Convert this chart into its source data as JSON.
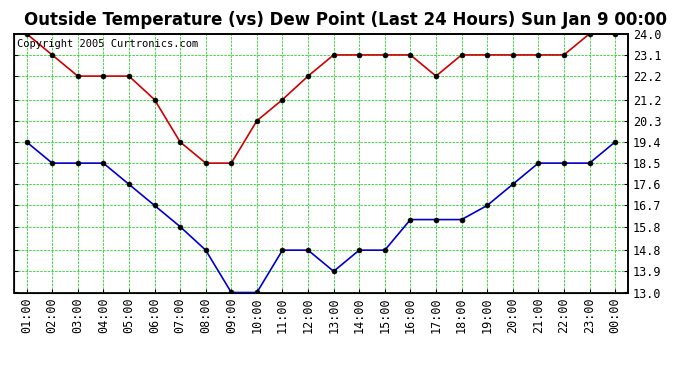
{
  "title": "Outside Temperature (vs) Dew Point (Last 24 Hours) Sun Jan 9 00:00",
  "copyright": "Copyright 2005 Curtronics.com",
  "x_labels": [
    "01:00",
    "02:00",
    "03:00",
    "04:00",
    "05:00",
    "06:00",
    "07:00",
    "08:00",
    "09:00",
    "10:00",
    "11:00",
    "12:00",
    "13:00",
    "14:00",
    "15:00",
    "16:00",
    "17:00",
    "18:00",
    "19:00",
    "20:00",
    "21:00",
    "22:00",
    "23:00",
    "00:00"
  ],
  "y_ticks": [
    13.0,
    13.9,
    14.8,
    15.8,
    16.7,
    17.6,
    18.5,
    19.4,
    20.3,
    21.2,
    22.2,
    23.1,
    24.0
  ],
  "y_min": 13.0,
  "y_max": 24.0,
  "red_line": [
    24.0,
    23.1,
    22.2,
    22.2,
    22.2,
    21.2,
    19.4,
    18.5,
    18.5,
    20.3,
    21.2,
    22.2,
    23.1,
    23.1,
    23.1,
    23.1,
    22.2,
    23.1,
    23.1,
    23.1,
    23.1,
    23.1,
    24.0,
    24.0
  ],
  "blue_line": [
    19.4,
    18.5,
    18.5,
    18.5,
    17.6,
    16.7,
    15.8,
    14.8,
    13.0,
    13.0,
    14.8,
    14.8,
    13.9,
    14.8,
    14.8,
    16.1,
    16.1,
    16.1,
    16.7,
    17.6,
    18.5,
    18.5,
    18.5,
    19.4
  ],
  "red_color": "#cc0000",
  "blue_color": "#0000cc",
  "bg_color": "#ffffff",
  "plot_bg_color": "#ffffff",
  "grid_color": "#00cc00",
  "title_fontsize": 12,
  "tick_fontsize": 8.5,
  "copyright_fontsize": 7.5,
  "border_color": "#000000",
  "marker_color": "#000000",
  "marker_size": 3.5,
  "line_width": 1.2
}
